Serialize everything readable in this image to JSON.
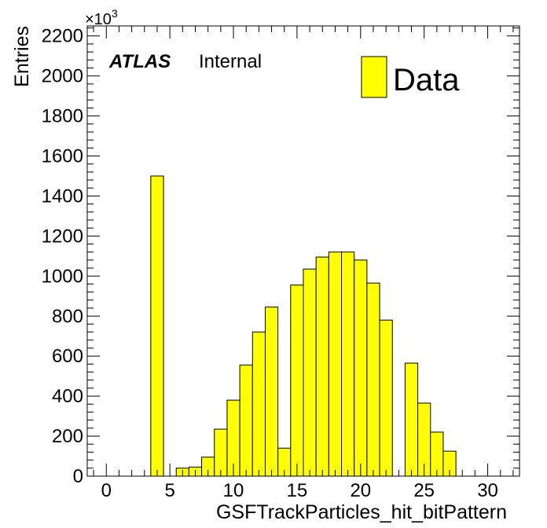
{
  "chart_data": {
    "type": "bar",
    "x_label": "GSFTrackParticles_hit_bitPattern",
    "y_label": "Entries",
    "y_multiplier": "×10",
    "y_multiplier_exponent": "3",
    "atlas_label": "ATLAS",
    "atlas_sublabel": "Internal",
    "legend_entry": "Data",
    "legend_position": "top-right",
    "xlim": [
      -1.5,
      32.5
    ],
    "ylim": [
      0,
      2250
    ],
    "x_ticks": [
      0,
      5,
      10,
      15,
      20,
      25,
      30
    ],
    "x_tick_labels": [
      "0",
      "5",
      "10",
      "15",
      "20",
      "25",
      "30"
    ],
    "y_ticks": [
      0,
      200,
      400,
      600,
      800,
      1000,
      1200,
      1400,
      1600,
      1800,
      2000,
      2200
    ],
    "y_tick_labels": [
      "0",
      "200",
      "400",
      "600",
      "800",
      "1000",
      "1200",
      "1400",
      "1600",
      "1800",
      "2000",
      "2200"
    ],
    "bin_width": 1,
    "bins": [
      {
        "x": 4,
        "value": 1500
      },
      {
        "x": 6,
        "value": 40
      },
      {
        "x": 7,
        "value": 45
      },
      {
        "x": 8,
        "value": 95
      },
      {
        "x": 9,
        "value": 235
      },
      {
        "x": 10,
        "value": 380
      },
      {
        "x": 11,
        "value": 555
      },
      {
        "x": 12,
        "value": 720
      },
      {
        "x": 13,
        "value": 845
      },
      {
        "x": 14,
        "value": 140
      },
      {
        "x": 15,
        "value": 955
      },
      {
        "x": 16,
        "value": 1035
      },
      {
        "x": 17,
        "value": 1095
      },
      {
        "x": 18,
        "value": 1120
      },
      {
        "x": 19,
        "value": 1120
      },
      {
        "x": 20,
        "value": 1080
      },
      {
        "x": 21,
        "value": 965
      },
      {
        "x": 22,
        "value": 780
      },
      {
        "x": 24,
        "value": 565
      },
      {
        "x": 25,
        "value": 365
      },
      {
        "x": 26,
        "value": 220
      },
      {
        "x": 27,
        "value": 125
      }
    ],
    "fill_color": "#ffff00",
    "edge_color": "#000000",
    "grid": false
  }
}
